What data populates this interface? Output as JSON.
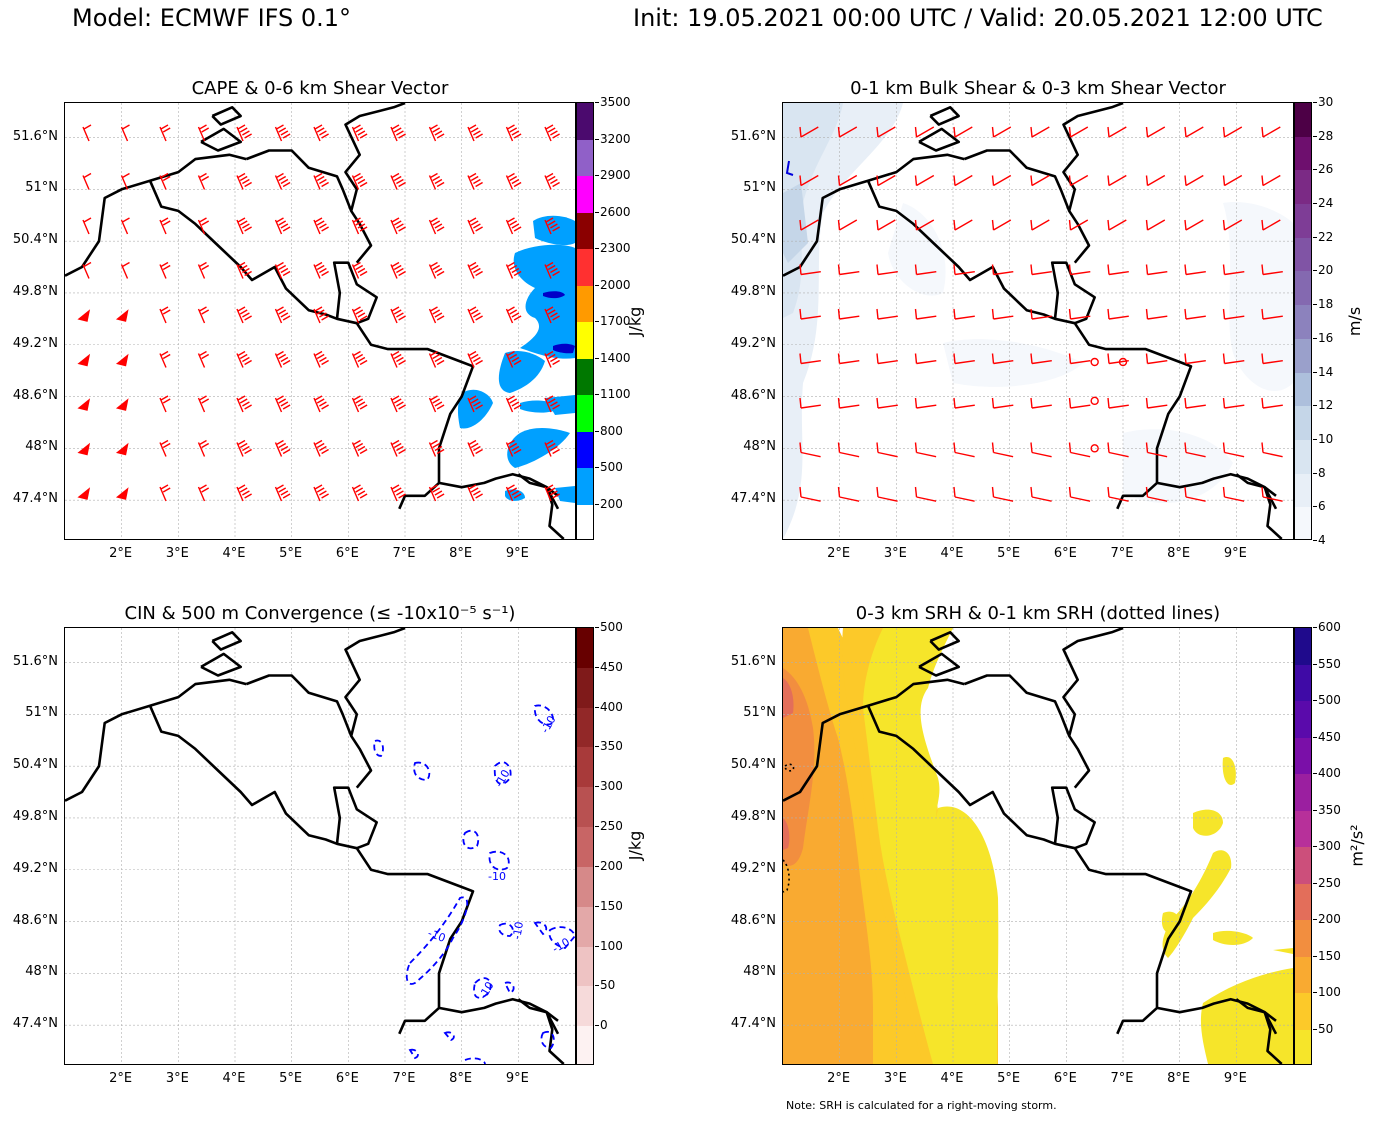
{
  "header": {
    "model": "Model: ECMWF IFS 0.1°",
    "init_valid": "Init: 19.05.2021 00:00 UTC / Valid: 20.05.2021 12:00 UTC"
  },
  "axes": {
    "lat_labels": [
      "51.6°N",
      "51°N",
      "50.4°N",
      "49.8°N",
      "49.2°N",
      "48.6°N",
      "48°N",
      "47.4°N"
    ],
    "lon_labels": [
      "2°E",
      "3°E",
      "4°E",
      "5°E",
      "6°E",
      "7°E",
      "8°E",
      "9°E"
    ]
  },
  "panels": {
    "cape": {
      "title": "CAPE & 0-6 km Shear Vector",
      "unit": "J/kg",
      "ticks": [
        "3500",
        "3200",
        "2900",
        "2600",
        "2300",
        "2000",
        "1700",
        "1400",
        "1100",
        "800",
        "500",
        "200"
      ],
      "colors": [
        "#4b0a6e",
        "#9060c8",
        "#ff00ff",
        "#8b0000",
        "#ff3030",
        "#ff9a00",
        "#ffff00",
        "#007800",
        "#00ff00",
        "#0000ff",
        "#00a0ff",
        "#ffffff"
      ],
      "barb_color": "#ff0000"
    },
    "shear": {
      "title": "0-1 km Bulk Shear & 0-3 km Shear Vector",
      "unit": "m/s",
      "ticks": [
        "30",
        "28",
        "26",
        "24",
        "22",
        "20",
        "18",
        "16",
        "14",
        "12",
        "10",
        "8",
        "6",
        "4"
      ],
      "colors": [
        "#4d0046",
        "#6e0f6e",
        "#7b2a85",
        "#7e3d96",
        "#8054a5",
        "#8469b0",
        "#8c82bd",
        "#9aa0cb",
        "#adbfdc",
        "#c5d6e8",
        "#d9e5f1",
        "#e8eff7",
        "#f5f8fc"
      ],
      "barb_color": "#ff0000"
    },
    "cin": {
      "title": "CIN & 500 m Convergence (≤ -10x10⁻⁵ s⁻¹)",
      "unit": "J/kg",
      "ticks": [
        "500",
        "450",
        "400",
        "350",
        "300",
        "250",
        "200",
        "150",
        "100",
        "50",
        "0"
      ],
      "colors": [
        "#670000",
        "#7f1a1a",
        "#922828",
        "#a83a3a",
        "#b85151",
        "#c86565",
        "#d68989",
        "#e3a8a8",
        "#eec3c3",
        "#f6dada",
        "#fdf2f2"
      ],
      "contour_label": "-10"
    },
    "srh": {
      "title": "0-3 km SRH & 0-1 km SRH (dotted lines)",
      "unit": "m²/s²",
      "ticks": [
        "600",
        "550",
        "500",
        "450",
        "400",
        "350",
        "300",
        "250",
        "200",
        "150",
        "100",
        "50"
      ],
      "colors": [
        "#1f0a8c",
        "#3f0aa6",
        "#5a0aab",
        "#7a0fa8",
        "#9b1fa0",
        "#b7309a",
        "#cc4f7b",
        "#e36e5a",
        "#f28e3f",
        "#f9aa31",
        "#fcc929",
        "#f6e52a"
      ]
    }
  },
  "footer": {
    "note": "Note: SRH is calculated for a right-moving storm."
  }
}
